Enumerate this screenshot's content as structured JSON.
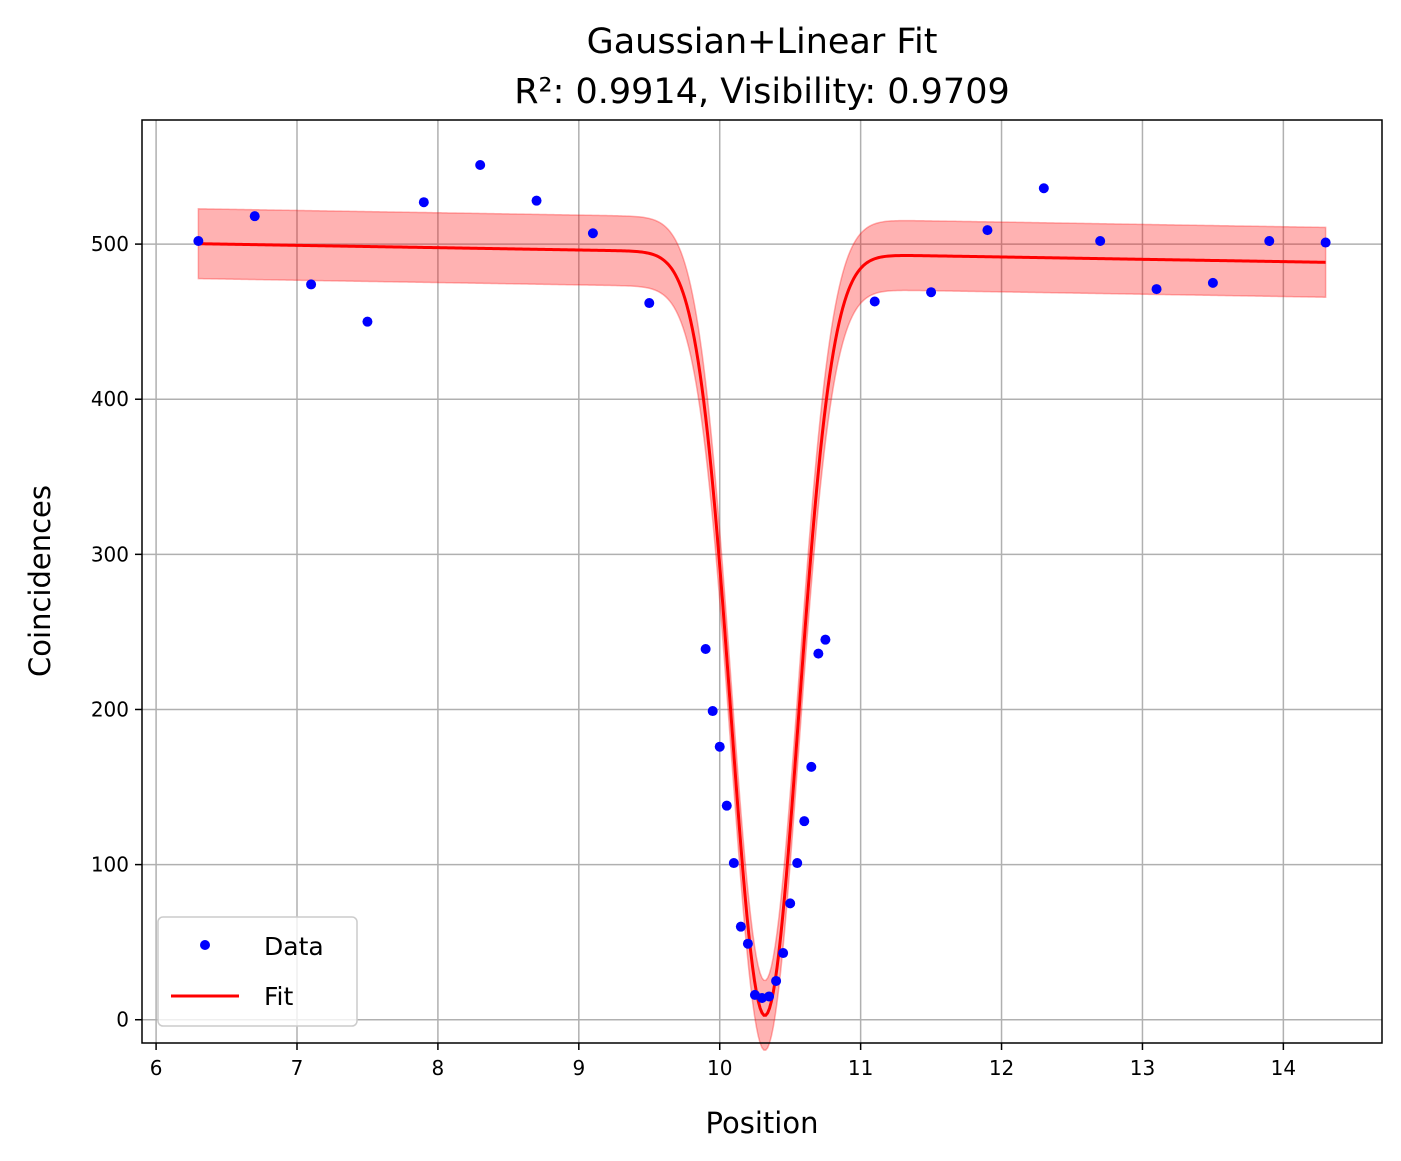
{
  "chart_data": {
    "type": "scatter",
    "title": "Gaussian+Linear Fit",
    "subtitle": "R²: 0.9914, Visibility: 0.9709",
    "xlabel": "Position",
    "ylabel": "Coincidences",
    "xlim": [
      5.9,
      14.7
    ],
    "ylim": [
      -15,
      580
    ],
    "xticks": [
      6,
      7,
      8,
      9,
      10,
      11,
      12,
      13,
      14
    ],
    "yticks": [
      0,
      100,
      200,
      300,
      400,
      500
    ],
    "grid": true,
    "legend_position": "lower-left",
    "colors": {
      "data": "#0000ff",
      "fit": "#ff0000",
      "band": "#ff0000",
      "grid": "#b0b0b0"
    },
    "series": [
      {
        "name": "Data",
        "kind": "scatter",
        "x": [
          6.3,
          6.7,
          7.1,
          7.5,
          7.9,
          8.3,
          8.7,
          9.1,
          9.5,
          9.9,
          9.95,
          10.0,
          10.05,
          10.1,
          10.15,
          10.2,
          10.25,
          10.3,
          10.35,
          10.4,
          10.45,
          10.5,
          10.55,
          10.6,
          10.65,
          10.7,
          10.75,
          11.1,
          11.5,
          11.9,
          12.3,
          12.7,
          13.1,
          13.5,
          13.9,
          14.3
        ],
        "y": [
          502,
          518,
          474,
          450,
          527,
          551,
          528,
          507,
          462,
          239,
          199,
          176,
          138,
          101,
          60,
          49,
          16,
          14,
          15,
          25,
          43,
          75,
          101,
          128,
          163,
          236,
          245,
          463,
          469,
          509,
          536,
          502,
          471,
          475,
          502,
          501
        ]
      },
      {
        "name": "Fit",
        "kind": "line",
        "model": {
          "offset": 509.7,
          "slope": -1.5,
          "amplitude": 491.5,
          "center": 10.32,
          "sigma": 0.24,
          "order": 2,
          "band": 22.5,
          "x_start": 6.3,
          "x_end": 14.3
        }
      }
    ]
  }
}
